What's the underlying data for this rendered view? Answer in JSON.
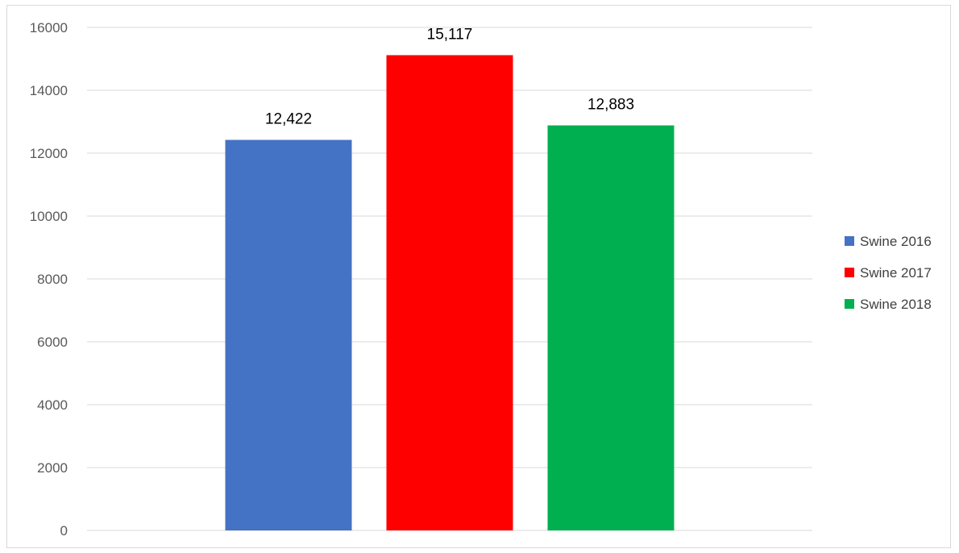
{
  "chart_data": {
    "type": "bar",
    "categories": [
      ""
    ],
    "series": [
      {
        "name": "Swine 2016",
        "values": [
          12422
        ],
        "label": "12,422",
        "color": "#4472C4"
      },
      {
        "name": "Swine 2017",
        "values": [
          15117
        ],
        "label": "15,117",
        "color": "#FF0000"
      },
      {
        "name": "Swine 2018",
        "values": [
          12883
        ],
        "label": "12,883",
        "color": "#00B050"
      }
    ],
    "title": "",
    "xlabel": "",
    "ylabel": "",
    "ylim": [
      0,
      16000
    ],
    "yticks": [
      "0",
      "2000",
      "4000",
      "6000",
      "8000",
      "10000",
      "12000",
      "14000",
      "16000"
    ],
    "grid": true,
    "legend_position": "right"
  }
}
